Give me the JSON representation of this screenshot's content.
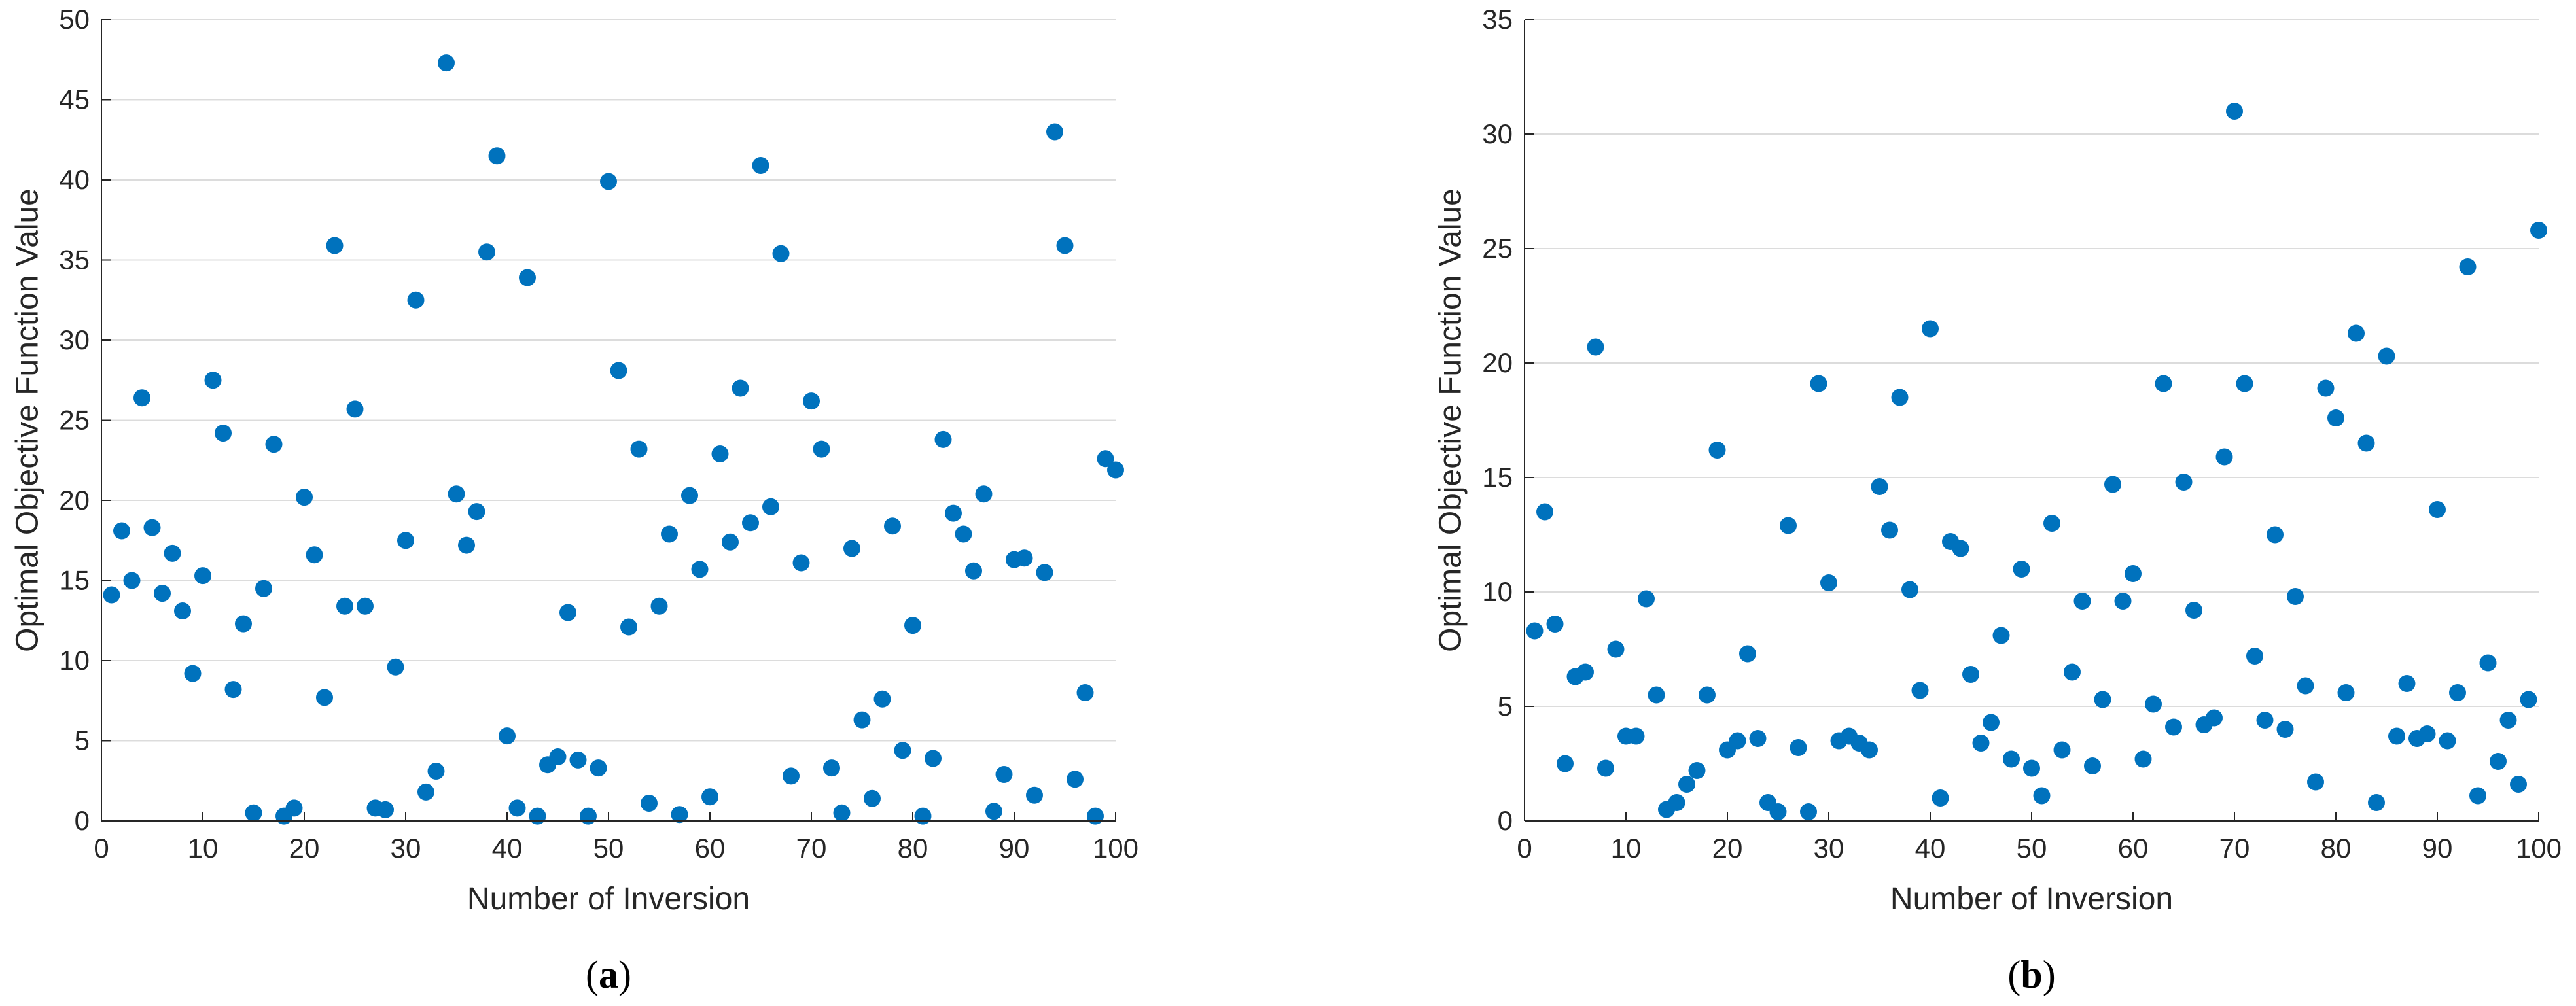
{
  "chart_data": [
    {
      "type": "scatter",
      "panel_label": "a",
      "xlabel": "Number of Inversion",
      "ylabel": "Optimal Objective Function Value",
      "xlim": [
        0,
        100
      ],
      "ylim": [
        0,
        50
      ],
      "xticks": [
        0,
        10,
        20,
        30,
        40,
        50,
        60,
        70,
        80,
        90,
        100
      ],
      "yticks": [
        0,
        5,
        10,
        15,
        20,
        25,
        30,
        35,
        40,
        45,
        50
      ],
      "grid": "horizontal",
      "marker_color": "#0072BD",
      "x": [
        1,
        2,
        3,
        4,
        5,
        6,
        7,
        8,
        9,
        10,
        11,
        12,
        13,
        14,
        15,
        16,
        17,
        18,
        19,
        20,
        21,
        22,
        23,
        24,
        25,
        26,
        27,
        28,
        29,
        30,
        31,
        32,
        33,
        34,
        35,
        36,
        37,
        38,
        39,
        40,
        41,
        42,
        43,
        44,
        45,
        46,
        47,
        48,
        49,
        50,
        51,
        52,
        53,
        54,
        55,
        56,
        57,
        58,
        59,
        60,
        61,
        62,
        63,
        64,
        65,
        66,
        67,
        68,
        69,
        70,
        71,
        72,
        73,
        74,
        75,
        76,
        77,
        78,
        79,
        80,
        81,
        82,
        83,
        84,
        85,
        86,
        87,
        88,
        89,
        90,
        91,
        92,
        93,
        94,
        95,
        96,
        97,
        98,
        99,
        100
      ],
      "y": [
        14.1,
        18.1,
        15,
        26.4,
        18.3,
        14.2,
        16.7,
        13.1,
        9.2,
        15.3,
        27.5,
        24.2,
        8.2,
        12.3,
        0.5,
        14.5,
        23.5,
        0.3,
        0.8,
        20.2,
        16.6,
        7.7,
        35.9,
        13.4,
        25.7,
        13.4,
        0.8,
        0.7,
        9.6,
        17.5,
        32.5,
        1.8,
        3.1,
        47.3,
        20.4,
        17.2,
        19.3,
        35.5,
        41.5,
        5.3,
        0.8,
        33.9,
        0.3,
        3.5,
        4,
        13,
        3.8,
        0.3,
        3.3,
        39.9,
        28.1,
        12.1,
        23.2,
        1.1,
        13.4,
        17.9,
        0.4,
        20.3,
        15.7,
        1.5,
        22.9,
        17.4,
        27,
        18.6,
        40.9,
        19.6,
        35.4,
        2.8,
        16.1,
        26.2,
        23.2,
        3.3,
        0.5,
        17,
        6.3,
        1.4,
        7.6,
        18.4,
        4.4,
        12.2,
        0.3,
        3.9,
        23.8,
        19.2,
        17.9,
        15.6,
        20.4,
        0.6,
        2.9,
        16.3,
        16.4,
        1.6,
        15.5,
        43,
        35.9,
        2.6,
        8,
        0.3,
        22.6,
        21.9
      ]
    },
    {
      "type": "scatter",
      "panel_label": "b",
      "xlabel": "Number of Inversion",
      "ylabel": "Optimal Objective Function Value",
      "xlim": [
        0,
        100
      ],
      "ylim": [
        0,
        35
      ],
      "xticks": [
        0,
        10,
        20,
        30,
        40,
        50,
        60,
        70,
        80,
        90,
        100
      ],
      "yticks": [
        0,
        5,
        10,
        15,
        20,
        25,
        30,
        35
      ],
      "grid": "horizontal",
      "marker_color": "#0072BD",
      "x": [
        1,
        2,
        3,
        4,
        5,
        6,
        7,
        8,
        9,
        10,
        11,
        12,
        13,
        14,
        15,
        16,
        17,
        18,
        19,
        20,
        21,
        22,
        23,
        24,
        25,
        26,
        27,
        28,
        29,
        30,
        31,
        32,
        33,
        34,
        35,
        36,
        37,
        38,
        39,
        40,
        41,
        42,
        43,
        44,
        45,
        46,
        47,
        48,
        49,
        50,
        51,
        52,
        53,
        54,
        55,
        56,
        57,
        58,
        59,
        60,
        61,
        62,
        63,
        64,
        65,
        66,
        67,
        68,
        69,
        70,
        71,
        72,
        73,
        74,
        75,
        76,
        77,
        78,
        79,
        80,
        81,
        82,
        83,
        84,
        85,
        86,
        87,
        88,
        89,
        90,
        91,
        92,
        93,
        94,
        95,
        96,
        97,
        98,
        99,
        100
      ],
      "y": [
        8.3,
        13.5,
        8.6,
        2.5,
        6.3,
        6.5,
        20.7,
        2.3,
        7.5,
        3.7,
        3.7,
        9.7,
        5.5,
        0.5,
        0.8,
        1.6,
        2.2,
        5.5,
        16.2,
        3.1,
        3.5,
        7.3,
        3.6,
        0.8,
        0.4,
        12.9,
        3.2,
        0.4,
        19.1,
        10.4,
        3.5,
        3.7,
        3.4,
        3.1,
        14.6,
        12.7,
        18.5,
        10.1,
        5.7,
        21.5,
        1,
        12.2,
        11.9,
        6.4,
        3.4,
        4.3,
        8.1,
        2.7,
        11,
        2.3,
        1.1,
        13,
        3.1,
        6.5,
        9.6,
        2.4,
        5.3,
        14.7,
        9.6,
        10.8,
        2.7,
        5.1,
        19.1,
        4.1,
        14.8,
        9.2,
        4.2,
        4.5,
        15.9,
        31,
        19.1,
        7.2,
        4.4,
        12.5,
        4,
        9.8,
        5.9,
        1.7,
        18.9,
        17.6,
        5.6,
        21.3,
        16.5,
        0.8,
        20.3,
        3.7,
        6,
        3.6,
        3.8,
        13.6,
        3.5,
        5.6,
        24.2,
        1.1,
        6.9,
        2.6,
        4.4,
        1.6,
        5.3,
        25.8
      ]
    }
  ]
}
